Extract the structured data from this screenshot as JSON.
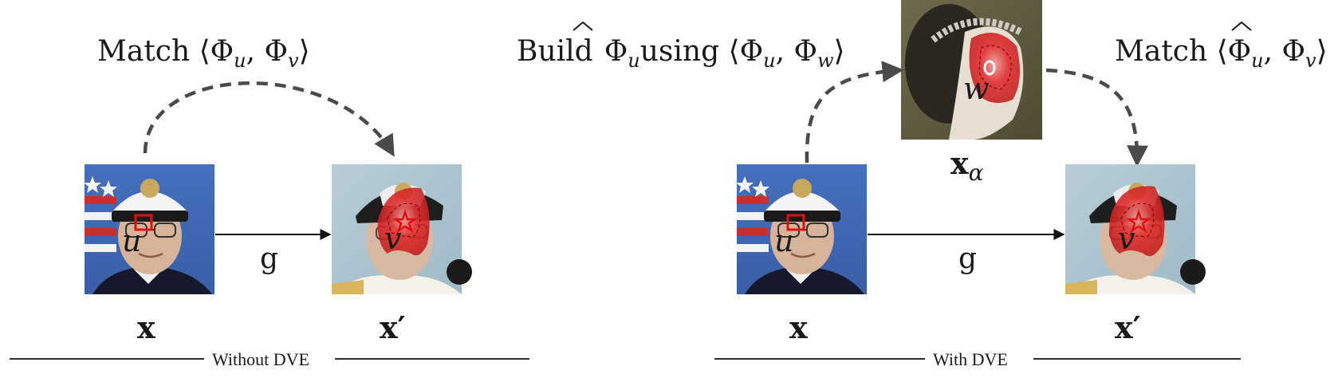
{
  "left_panel": {
    "match_label": "Match ⟨Φ",
    "match_sub_u": "u",
    "match_comma": ", Φ",
    "match_sub_v": "v",
    "match_close": "⟩",
    "source_symbol": "x",
    "target_symbol": "x′",
    "point_u": "u",
    "point_v": "v",
    "map_label": "g",
    "section_caption": "Without DVE"
  },
  "right_panel": {
    "build_word": "Build",
    "build_phi": "Φ",
    "build_sub_u": "u",
    "build_using": "using ⟨Φ",
    "build_sub_u2": "u",
    "build_comma": ", Φ",
    "build_sub_w": "w",
    "build_close": "⟩",
    "match_label": "Match ⟨Φ",
    "match_sub_u": "u",
    "match_comma": ", Φ",
    "match_sub_v": "v",
    "match_close": "⟩",
    "source_symbol": "x",
    "aux_symbol": "x",
    "aux_sub": "α",
    "target_symbol": "x′",
    "point_u": "u",
    "point_v": "v",
    "point_w": "w",
    "map_label": "g",
    "section_caption": "With DVE"
  },
  "colors": {
    "arrow_dashed": "#4a4a4a",
    "heat_red": "#d81e1e",
    "marker_red": "#e01010",
    "sky_blue": "#3f68b3",
    "pale_blue": "#a9c3cf",
    "painting_olive": "#5f5a40"
  },
  "icons": {
    "source_photo": "portrait-photo-icon",
    "target_photo": "portrait-photo-icon",
    "painting": "painting-portrait-icon",
    "keypoint_u": "square-marker-icon",
    "keypoint_v": "star-marker-icon",
    "keypoint_w": "circle-marker-icon"
  }
}
